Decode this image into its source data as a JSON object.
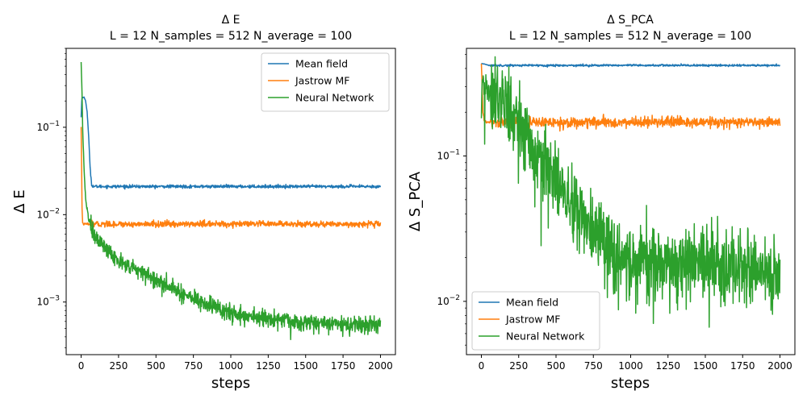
{
  "chart_data": [
    {
      "type": "line",
      "title_line1": "Δ E",
      "title_line2": "L = 12 N_samples = 512 N_average = 100",
      "xlabel": "steps",
      "ylabel": "Δ E",
      "xlim": [
        -100,
        2100
      ],
      "ylim": [
        0.00025,
        0.8
      ],
      "yscale": "log",
      "xticks": [
        0,
        250,
        500,
        750,
        1000,
        1250,
        1500,
        1750,
        2000
      ],
      "xtick_labels": [
        "0",
        "250",
        "500",
        "750",
        "1000",
        "1250",
        "1500",
        "1750",
        "2000"
      ],
      "yticks": [
        0.001,
        0.01,
        0.1
      ],
      "legend_location": "upper right",
      "series": [
        {
          "name": "Mean field",
          "color": "#1f77b4",
          "x": [
            0,
            5,
            10,
            20,
            30,
            40,
            50,
            60,
            70,
            80,
            100,
            150,
            200,
            500,
            1000,
            1500,
            2000
          ],
          "y": [
            0.13,
            0.22,
            0.22,
            0.22,
            0.2,
            0.15,
            0.08,
            0.035,
            0.022,
            0.021,
            0.021,
            0.021,
            0.021,
            0.021,
            0.021,
            0.021,
            0.021
          ],
          "noise": 0.02
        },
        {
          "name": "Jastrow MF",
          "color": "#ff7f0e",
          "x": [
            0,
            3,
            6,
            10,
            15,
            20,
            50,
            100,
            500,
            1000,
            1500,
            2000
          ],
          "y": [
            0.1,
            0.04,
            0.012,
            0.008,
            0.0078,
            0.0078,
            0.0078,
            0.0078,
            0.0078,
            0.0078,
            0.0078,
            0.0078
          ],
          "noise": 0.04
        },
        {
          "name": "Neural Network",
          "color": "#2ca02c",
          "x": [
            0,
            5,
            10,
            20,
            30,
            50,
            80,
            100,
            150,
            200,
            250,
            300,
            400,
            500,
            600,
            700,
            800,
            900,
            1000,
            1200,
            1400,
            1600,
            1800,
            2000
          ],
          "y": [
            0.55,
            0.3,
            0.1,
            0.03,
            0.015,
            0.009,
            0.0065,
            0.0055,
            0.0042,
            0.0035,
            0.003,
            0.0026,
            0.0022,
            0.0018,
            0.0015,
            0.0012,
            0.001,
            0.00085,
            0.00075,
            0.00065,
            0.0006,
            0.00058,
            0.00056,
            0.00055
          ],
          "noise": 0.12
        }
      ]
    },
    {
      "type": "line",
      "title_line1": "Δ S_PCA",
      "title_line2": "L = 12 N_samples = 512 N_average = 100",
      "xlabel": "steps",
      "ylabel": "Δ S_PCA",
      "xlim": [
        -100,
        2100
      ],
      "ylim": [
        0.0043,
        0.55
      ],
      "yscale": "log",
      "xticks": [
        0,
        250,
        500,
        750,
        1000,
        1250,
        1500,
        1750,
        2000
      ],
      "xtick_labels": [
        "0",
        "250",
        "500",
        "750",
        "1000",
        "1250",
        "1500",
        "1750",
        "2000"
      ],
      "yticks": [
        0.01,
        0.1
      ],
      "legend_location": "lower left",
      "series": [
        {
          "name": "Mean field",
          "color": "#1f77b4",
          "x": [
            0,
            5,
            20,
            50,
            100,
            500,
            1000,
            1500,
            2000
          ],
          "y": [
            0.43,
            0.43,
            0.43,
            0.42,
            0.42,
            0.42,
            0.42,
            0.42,
            0.42
          ],
          "noise": 0.008
        },
        {
          "name": "Jastrow MF",
          "color": "#ff7f0e",
          "x": [
            0,
            5,
            10,
            20,
            40,
            100,
            500,
            1000,
            1500,
            2000
          ],
          "y": [
            0.43,
            0.3,
            0.2,
            0.175,
            0.17,
            0.17,
            0.17,
            0.17,
            0.17,
            0.17
          ],
          "noise": 0.04
        },
        {
          "name": "Neural Network",
          "color": "#2ca02c",
          "x": [
            0,
            5,
            30,
            80,
            150,
            250,
            350,
            450,
            550,
            650,
            750,
            850,
            950,
            1050,
            1150,
            1300,
            1500,
            1700,
            1900,
            2000
          ],
          "y": [
            0.19,
            0.32,
            0.3,
            0.27,
            0.23,
            0.17,
            0.12,
            0.085,
            0.06,
            0.042,
            0.03,
            0.022,
            0.02,
            0.019,
            0.018,
            0.018,
            0.018,
            0.017,
            0.017,
            0.016
          ],
          "noise": 0.3
        }
      ]
    }
  ]
}
